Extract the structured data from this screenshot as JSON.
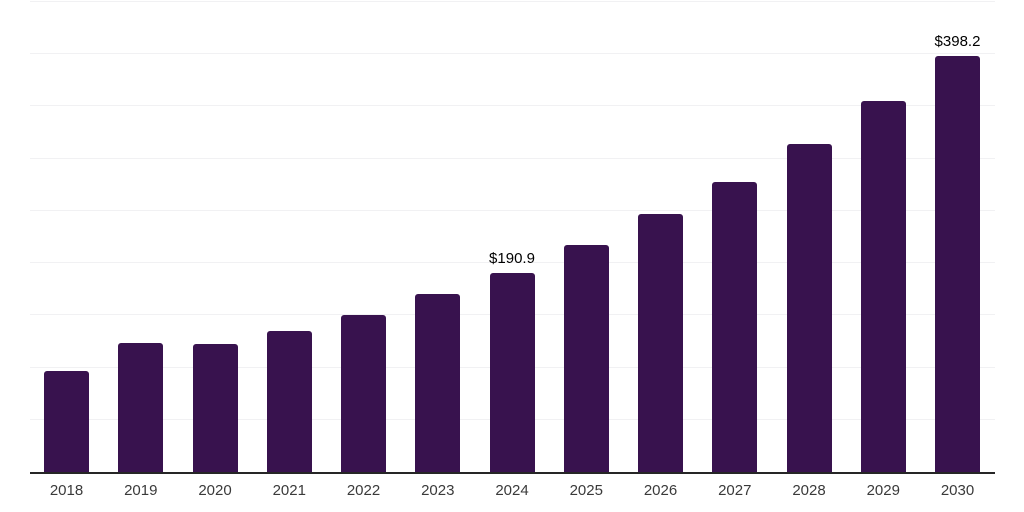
{
  "chart_data": {
    "type": "bar",
    "categories": [
      "2018",
      "2019",
      "2020",
      "2021",
      "2022",
      "2023",
      "2024",
      "2025",
      "2026",
      "2027",
      "2028",
      "2029",
      "2030"
    ],
    "values": [
      97,
      124,
      123,
      135,
      150,
      170,
      190.9,
      217,
      247,
      278,
      314,
      355,
      398.2
    ],
    "data_labels": [
      {
        "category": "2024",
        "text": "$190.9"
      },
      {
        "category": "2030",
        "text": "$398.2"
      }
    ],
    "ylim": [
      0,
      450
    ],
    "gridline_step": 50,
    "grid": true,
    "y_axis_tick_labels_visible": false,
    "legend_position": "none"
  },
  "colors": {
    "bar": "#38124E",
    "axis_line": "#262626",
    "gridline": "#f1f1f3",
    "tick_label": "#3a3a3a",
    "data_label": "#000000",
    "background": "#ffffff"
  }
}
